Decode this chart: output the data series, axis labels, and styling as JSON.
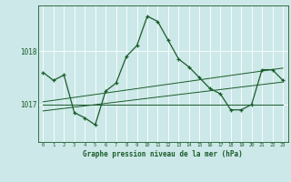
{
  "background_color": "#cce8e8",
  "grid_color": "#ffffff",
  "line_color": "#1a5c2a",
  "title": "Graphe pression niveau de la mer (hPa)",
  "xlim": [
    -0.5,
    23.5
  ],
  "ylim": [
    1016.3,
    1018.85
  ],
  "yticks": [
    1017.0,
    1018.0
  ],
  "hours": [
    0,
    1,
    2,
    3,
    4,
    5,
    6,
    7,
    8,
    9,
    10,
    11,
    12,
    13,
    14,
    15,
    16,
    17,
    18,
    19,
    20,
    21,
    22,
    23
  ],
  "main_line": [
    1017.6,
    1017.45,
    1017.55,
    1016.85,
    1016.75,
    1016.62,
    1017.25,
    1017.4,
    1017.9,
    1018.1,
    1018.65,
    1018.55,
    1018.2,
    1017.85,
    1017.7,
    1017.5,
    1017.3,
    1017.2,
    1016.9,
    1016.9,
    1017.0,
    1017.65,
    1017.65,
    1017.45
  ],
  "trend_line1_x": [
    0,
    23
  ],
  "trend_line1_y": [
    1017.0,
    1017.0
  ],
  "trend_line2_x": [
    0,
    23
  ],
  "trend_line2_y": [
    1016.88,
    1017.42
  ],
  "trend_line3_x": [
    0,
    23
  ],
  "trend_line3_y": [
    1017.05,
    1017.68
  ],
  "figwidth": 3.2,
  "figheight": 2.0,
  "dpi": 100
}
